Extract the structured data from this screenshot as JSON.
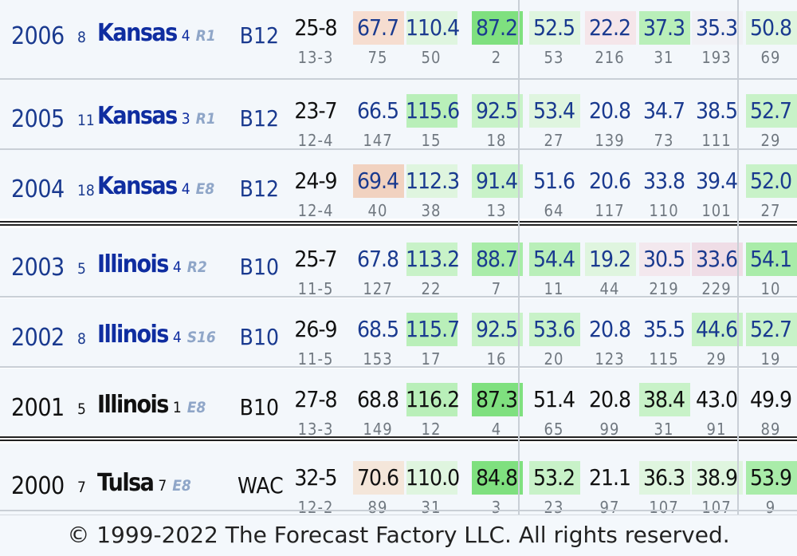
{
  "rows": [
    {
      "year": "2006",
      "seed": "8",
      "team": "Kansas",
      "tseed": "4",
      "result": "R1",
      "conf": "B12",
      "wl": "25-8",
      "conf_rec": "13-3",
      "stats": [
        [
          "67.7",
          "75"
        ],
        [
          "110.4",
          "50"
        ],
        [
          "87.2",
          "2"
        ],
        [
          "52.5",
          "53"
        ],
        [
          "22.2",
          "216"
        ],
        [
          "37.3",
          "31"
        ],
        [
          "35.3",
          "193"
        ],
        [
          "50.8",
          "69"
        ]
      ],
      "shades": [
        "#f6ddd0",
        "#dff5df",
        "#7fe07f",
        "#dff5df",
        "#f5e6ea",
        "#b9efb9",
        "#f1f1f5",
        "#dff5df"
      ]
    },
    {
      "year": "2005",
      "seed": "11",
      "team": "Kansas",
      "tseed": "3",
      "result": "R1",
      "conf": "B12",
      "wl": "23-7",
      "conf_rec": "12-4",
      "stats": [
        [
          "66.5",
          "147"
        ],
        [
          "115.6",
          "15"
        ],
        [
          "92.5",
          "18"
        ],
        [
          "53.4",
          "27"
        ],
        [
          "20.8",
          "139"
        ],
        [
          "34.7",
          "73"
        ],
        [
          "38.5",
          "111"
        ],
        [
          "52.7",
          "29"
        ]
      ],
      "shades": [
        "",
        "#b9efb9",
        "#c8f2c8",
        "#dff5df",
        "",
        "",
        "",
        "#c8f2c8"
      ]
    },
    {
      "year": "2004",
      "seed": "18",
      "team": "Kansas",
      "tseed": "4",
      "result": "E8",
      "conf": "B12",
      "wl": "24-9",
      "conf_rec": "12-4",
      "stats": [
        [
          "69.4",
          "40"
        ],
        [
          "112.3",
          "38"
        ],
        [
          "91.4",
          "13"
        ],
        [
          "51.6",
          "64"
        ],
        [
          "20.6",
          "117"
        ],
        [
          "33.8",
          "110"
        ],
        [
          "39.4",
          "101"
        ],
        [
          "52.0",
          "27"
        ]
      ],
      "shades": [
        "#f1d2c0",
        "#dff5df",
        "#c8f2c8",
        "",
        "",
        "",
        "",
        "#c8f2c8"
      ]
    },
    {
      "year": "2003",
      "seed": "5",
      "team": "Illinois",
      "tseed": "4",
      "result": "R2",
      "conf": "B10",
      "wl": "25-7",
      "conf_rec": "11-5",
      "stats": [
        [
          "67.8",
          "127"
        ],
        [
          "113.2",
          "22"
        ],
        [
          "88.7",
          "7"
        ],
        [
          "54.4",
          "11"
        ],
        [
          "19.2",
          "44"
        ],
        [
          "30.5",
          "219"
        ],
        [
          "33.6",
          "229"
        ],
        [
          "54.1",
          "10"
        ]
      ],
      "shades": [
        "",
        "#c8f2c8",
        "#a9eca9",
        "#b9efb9",
        "#dff5df",
        "#f3e8ee",
        "#efdde6",
        "#a9eca9"
      ]
    },
    {
      "year": "2002",
      "seed": "8",
      "team": "Illinois",
      "tseed": "4",
      "result": "S16",
      "conf": "B10",
      "wl": "26-9",
      "conf_rec": "11-5",
      "stats": [
        [
          "68.5",
          "153"
        ],
        [
          "115.7",
          "17"
        ],
        [
          "92.5",
          "16"
        ],
        [
          "53.6",
          "20"
        ],
        [
          "20.8",
          "123"
        ],
        [
          "35.5",
          "115"
        ],
        [
          "44.6",
          "29"
        ],
        [
          "52.7",
          "19"
        ]
      ],
      "shades": [
        "",
        "#b9efb9",
        "#c8f2c8",
        "#c8f2c8",
        "",
        "",
        "#c8f2c8",
        "#c8f2c8"
      ]
    },
    {
      "year": "2001",
      "seed": "5",
      "team": "Illinois",
      "tseed": "1",
      "result": "E8",
      "conf": "B10",
      "wl": "27-8",
      "conf_rec": "13-3",
      "stats": [
        [
          "68.8",
          "149"
        ],
        [
          "116.2",
          "12"
        ],
        [
          "87.3",
          "4"
        ],
        [
          "51.4",
          "65"
        ],
        [
          "20.8",
          "99"
        ],
        [
          "38.4",
          "31"
        ],
        [
          "43.0",
          "91"
        ],
        [
          "49.9",
          "89"
        ]
      ],
      "shades": [
        "",
        "#b9efb9",
        "#7fe07f",
        "",
        "",
        "#c8f2c8",
        "",
        ""
      ]
    },
    {
      "year": "2000",
      "seed": "7",
      "team": "Tulsa",
      "tseed": "7",
      "result": "E8",
      "conf": "WAC",
      "wl": "32-5",
      "conf_rec": "12-2",
      "stats": [
        [
          "70.6",
          "89"
        ],
        [
          "110.0",
          "31"
        ],
        [
          "84.8",
          "3"
        ],
        [
          "53.2",
          "23"
        ],
        [
          "21.1",
          "97"
        ],
        [
          "36.3",
          "107"
        ],
        [
          "38.9",
          "107"
        ],
        [
          "53.9",
          "9"
        ]
      ],
      "shades": [
        "#f4e6da",
        "#dff5df",
        "#7fe07f",
        "#c8f2c8",
        "",
        "#dff5df",
        "#dff5df",
        "#a9eca9"
      ]
    }
  ],
  "footer": "© 1999-2022 The Forecast Factory LLC. All rights reserved."
}
